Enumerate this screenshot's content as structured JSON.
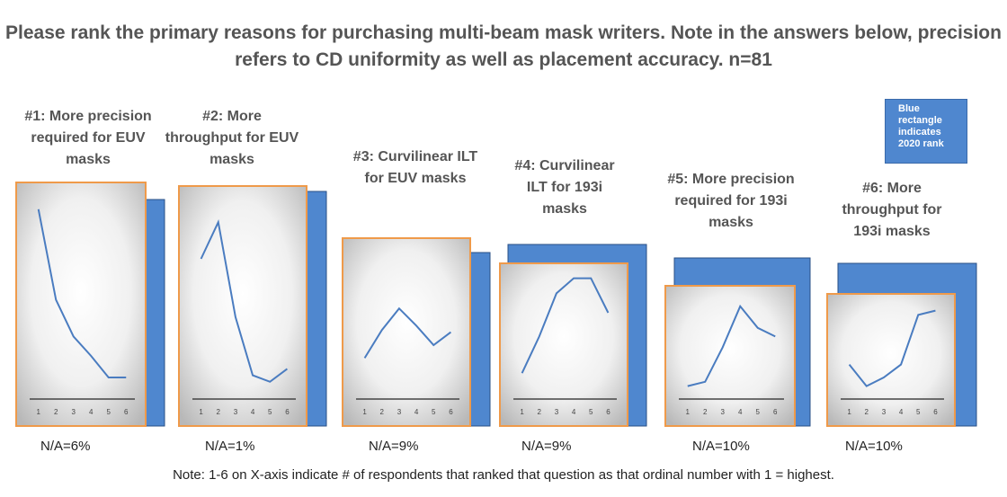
{
  "title": "Please rank the primary reasons for purchasing multi-beam mask writers. Note in the answers below, precision refers to CD uniformity as well as placement accuracy. n=81",
  "legend_note": "Blue rectangle indicates 2020 rank",
  "note": "Note: 1-6 on X-axis indicate # of respondents that ranked that question as that ordinal number with 1 = highest.",
  "chart_data": [
    {
      "type": "line",
      "title": "#1: More precision required for EUV masks",
      "annotation": "N/A=6%",
      "x": [
        1,
        2,
        3,
        4,
        5,
        6
      ],
      "values": [
        88,
        46,
        29,
        20,
        10,
        10
      ],
      "xlim": [
        0.5,
        6.5
      ],
      "xticks": [
        1,
        2,
        3,
        4,
        5,
        6
      ],
      "ylim": [
        0,
        100
      ],
      "color": "#4a7cc0"
    },
    {
      "type": "line",
      "title": "#2: More throughput for EUV masks",
      "annotation": "N/A=1%",
      "x": [
        1,
        2,
        3,
        4,
        5,
        6
      ],
      "values": [
        65,
        82,
        38,
        11,
        8,
        14
      ],
      "xlim": [
        0.5,
        6.5
      ],
      "xticks": [
        1,
        2,
        3,
        4,
        5,
        6
      ],
      "ylim": [
        0,
        100
      ],
      "color": "#4a7cc0"
    },
    {
      "type": "line",
      "title": "#3: Curvilinear ILT for EUV masks",
      "annotation": "N/A=9%",
      "x": [
        1,
        2,
        3,
        4,
        5,
        6
      ],
      "values": [
        19,
        32,
        42,
        34,
        25,
        31
      ],
      "xlim": [
        0.5,
        6.5
      ],
      "xticks": [
        1,
        2,
        3,
        4,
        5,
        6
      ],
      "ylim": [
        0,
        100
      ],
      "color": "#4a7cc0"
    },
    {
      "type": "line",
      "title": "#4: Curvilinear ILT for 193i masks",
      "annotation": "N/A=9%",
      "x": [
        1,
        2,
        3,
        4,
        5,
        6
      ],
      "values": [
        12,
        29,
        49,
        56,
        56,
        40
      ],
      "xlim": [
        0.5,
        6.5
      ],
      "xticks": [
        1,
        2,
        3,
        4,
        5,
        6
      ],
      "ylim": [
        0,
        100
      ],
      "color": "#4a7cc0"
    },
    {
      "type": "line",
      "title": "#5: More precision required for 193i masks",
      "annotation": "N/A=10%",
      "x": [
        1,
        2,
        3,
        4,
        5,
        6
      ],
      "values": [
        6,
        8,
        24,
        43,
        33,
        29
      ],
      "xlim": [
        0.5,
        6.5
      ],
      "xticks": [
        1,
        2,
        3,
        4,
        5,
        6
      ],
      "ylim": [
        0,
        100
      ],
      "color": "#4a7cc0"
    },
    {
      "type": "line",
      "title": "#6: More throughput for 193i masks",
      "annotation": "N/A=10%",
      "x": [
        1,
        2,
        3,
        4,
        5,
        6
      ],
      "values": [
        16,
        6,
        10,
        16,
        39,
        41
      ],
      "xlim": [
        0.5,
        6.5
      ],
      "xticks": [
        1,
        2,
        3,
        4,
        5,
        6
      ],
      "ylim": [
        0,
        100
      ],
      "color": "#4a7cc0"
    }
  ]
}
